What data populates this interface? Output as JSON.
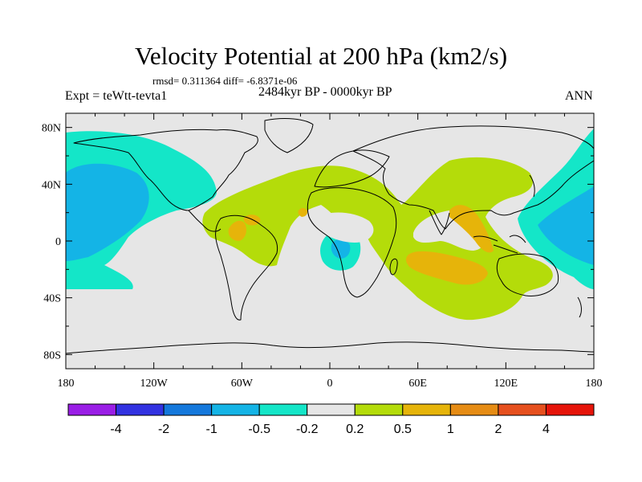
{
  "header": {
    "title": "Velocity Potential at 200 hPa (km2/s)",
    "stats": "rmsd= 0.311364 diff= -6.8371e-06",
    "expt": "Expt = teWtt-tevta1",
    "period": "2484kyr BP - 0000kyr BP",
    "season": "ANN"
  },
  "map": {
    "projection": "cylindrical-equidistant",
    "lon_range": [
      -180,
      180
    ],
    "lat_range": [
      -90,
      90
    ],
    "x_tick_labels": [
      "180",
      "120W",
      "60W",
      "0",
      "60E",
      "120E",
      "180"
    ],
    "y_tick_labels": [
      "80N",
      "40N",
      "0",
      "40S",
      "80S"
    ],
    "y_tick_values": [
      80,
      40,
      0,
      -40,
      -80
    ],
    "background_color": "#e6e6e6"
  },
  "colorbar": {
    "colors": [
      "#9a1ee6",
      "#3232e1",
      "#1478dc",
      "#14b4e6",
      "#14e6c8",
      "#e6e6e6",
      "#b4dc0a",
      "#e6b40a",
      "#e68c14",
      "#e6501e",
      "#e6140a"
    ],
    "labels": [
      "-4",
      "-2",
      "-1",
      "-0.5",
      "-0.2",
      "0.2",
      "0.5",
      "1",
      "2",
      "4"
    ]
  }
}
